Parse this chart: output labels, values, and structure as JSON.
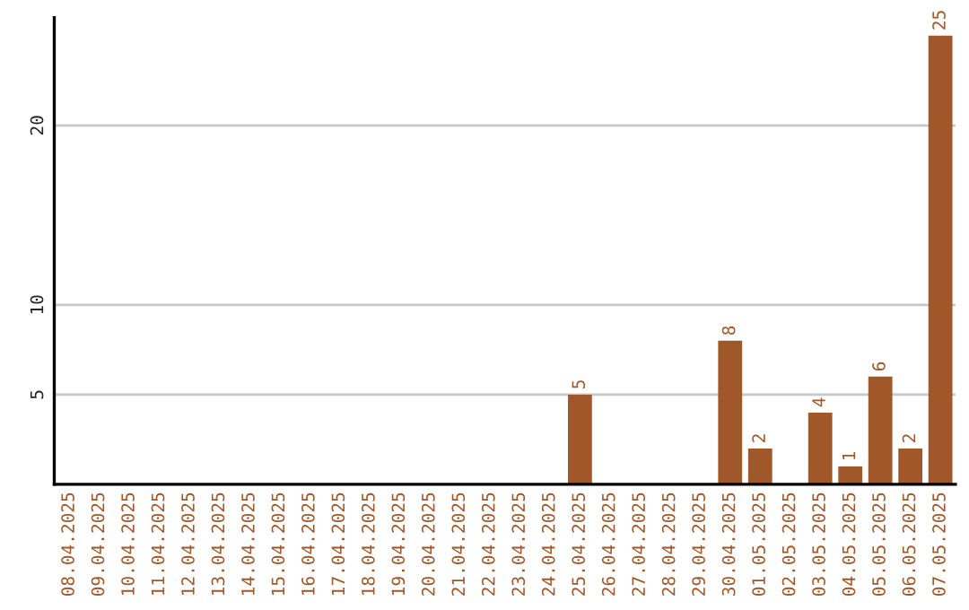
{
  "chart_data": {
    "type": "bar",
    "categories": [
      "08.04.2025",
      "09.04.2025",
      "10.04.2025",
      "11.04.2025",
      "12.04.2025",
      "13.04.2025",
      "14.04.2025",
      "15.04.2025",
      "16.04.2025",
      "17.04.2025",
      "18.04.2025",
      "19.04.2025",
      "20.04.2025",
      "21.04.2025",
      "22.04.2025",
      "23.04.2025",
      "24.04.2025",
      "25.04.2025",
      "26.04.2025",
      "27.04.2025",
      "28.04.2025",
      "29.04.2025",
      "30.04.2025",
      "01.05.2025",
      "02.05.2025",
      "03.05.2025",
      "04.05.2025",
      "05.05.2025",
      "06.05.2025",
      "07.05.2025"
    ],
    "values": [
      0,
      0,
      0,
      0,
      0,
      0,
      0,
      0,
      0,
      0,
      0,
      0,
      0,
      0,
      0,
      0,
      0,
      5,
      0,
      0,
      0,
      0,
      8,
      2,
      0,
      4,
      1,
      6,
      2,
      25
    ],
    "value_labels": [
      null,
      null,
      null,
      null,
      null,
      null,
      null,
      null,
      null,
      null,
      null,
      null,
      null,
      null,
      null,
      null,
      null,
      "5",
      null,
      null,
      null,
      null,
      "8",
      "2",
      null,
      "4",
      "1",
      "6",
      "2",
      "25"
    ],
    "color": "#a0582a",
    "ylim": [
      0,
      26
    ],
    "yticks": [
      5,
      10,
      20
    ],
    "grid": "y"
  }
}
